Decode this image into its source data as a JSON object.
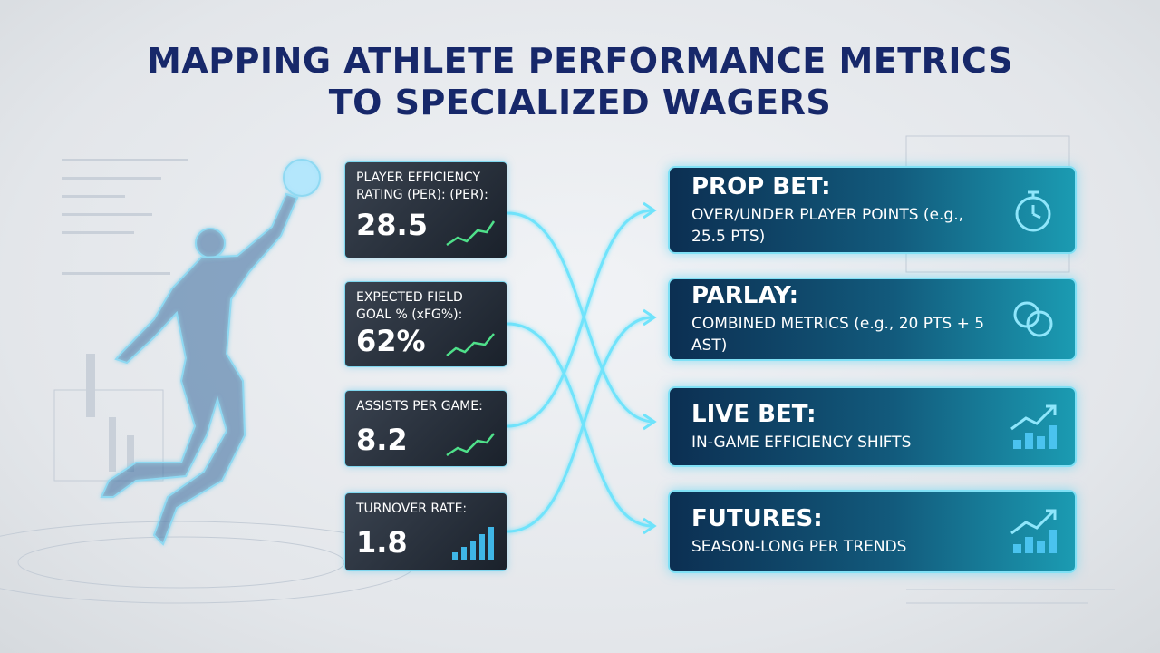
{
  "header": {
    "title": "MAPPING ATHLETE PERFORMANCE METRICS TO SPECIALIZED WAGERS"
  },
  "metrics": [
    {
      "label": "PLAYER EFFICIENCY RATING (PER): (PER):",
      "value": "28.5"
    },
    {
      "label": "EXPECTED FIELD GOAL % (xFG%):",
      "value": "62%"
    },
    {
      "label": "ASSISTS PER GAME:",
      "value": "8.2"
    },
    {
      "label": "TURNOVER RATE:",
      "value": "1.8"
    }
  ],
  "wagers": [
    {
      "title": "PROP BET:",
      "description": "OVER/UNDER PLAYER POINTS (e.g., 25.5 PTS)"
    },
    {
      "title": "PARLAY:",
      "description": "COMBINED METRICS (e.g., 20 PTS + 5 AST)"
    },
    {
      "title": "LIVE BET:",
      "description": "IN-GAME EFFICIENCY SHIFTS"
    },
    {
      "title": "FUTURES:",
      "description": "SEASON-LONG PER TRENDS"
    }
  ]
}
